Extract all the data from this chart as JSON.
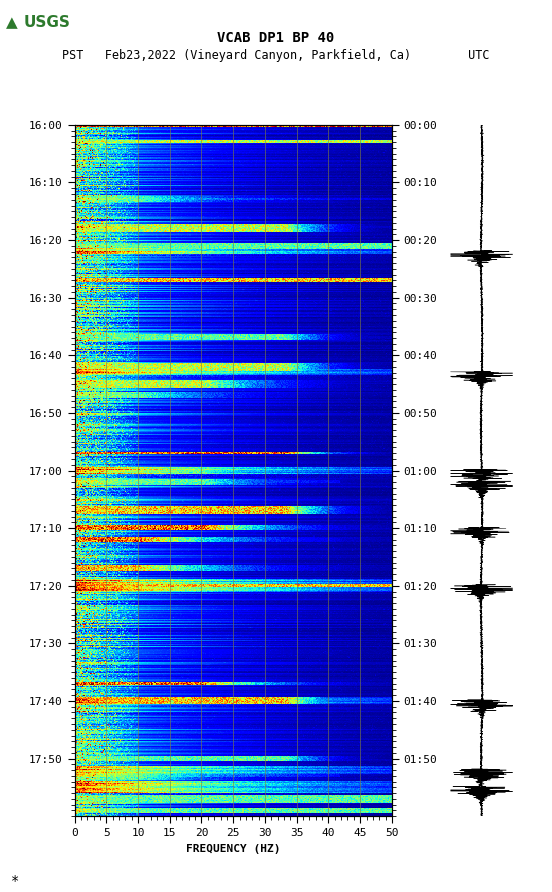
{
  "title_line1": "VCAB DP1 BP 40",
  "title_line2": "PST   Feb23,2022 (Vineyard Canyon, Parkfield, Ca)        UTC",
  "xlabel": "FREQUENCY (HZ)",
  "left_times": [
    "16:00",
    "16:10",
    "16:20",
    "16:30",
    "16:40",
    "16:50",
    "17:00",
    "17:10",
    "17:20",
    "17:30",
    "17:40",
    "17:50"
  ],
  "right_times": [
    "00:00",
    "00:10",
    "00:20",
    "00:30",
    "00:40",
    "00:50",
    "01:00",
    "01:10",
    "01:20",
    "01:30",
    "01:40",
    "01:50"
  ],
  "freq_min": 0,
  "freq_max": 50,
  "freq_ticks": [
    0,
    5,
    10,
    15,
    20,
    25,
    30,
    35,
    40,
    45,
    50
  ],
  "time_duration_minutes": 120,
  "background_color": "#ffffff",
  "colormap": "jet",
  "fig_width": 5.52,
  "fig_height": 8.92,
  "grid_color": "#7f7f40",
  "grid_alpha": 0.7,
  "event_times_minutes": [
    0,
    3,
    13,
    18,
    21,
    27,
    37,
    42,
    45,
    47,
    57,
    60,
    62,
    67,
    70,
    72,
    77,
    80,
    97,
    100,
    110,
    112,
    113,
    115,
    117,
    119
  ],
  "seismogram_events": [
    22,
    43,
    60,
    62,
    70,
    80,
    100,
    112,
    115
  ]
}
